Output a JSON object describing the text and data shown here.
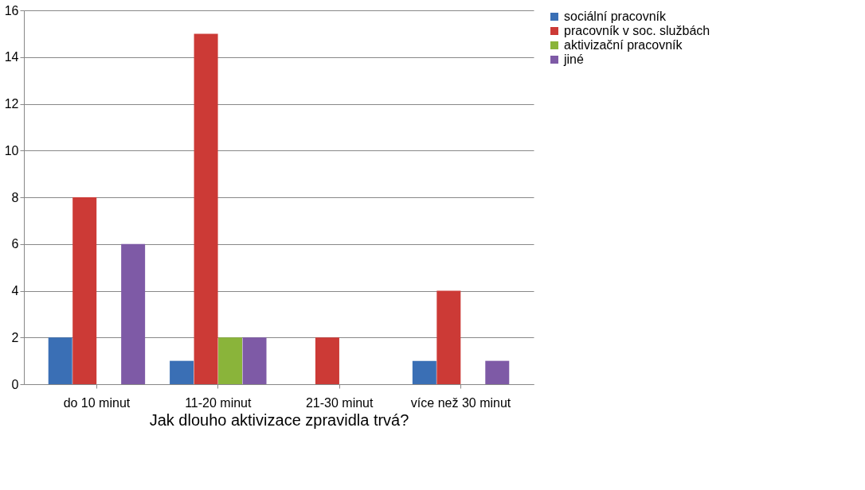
{
  "chart_data": {
    "type": "bar",
    "xlabel": "Jak dlouho aktivizace zpravidla trvá?",
    "categories": [
      "do 10 minut",
      "11-20 minut",
      "21-30 minut",
      "více než 30 minut"
    ],
    "series": [
      {
        "name": "sociální pracovník",
        "color": "#3a6fb5",
        "values": [
          2,
          1,
          0,
          1
        ]
      },
      {
        "name": "pracovník v soc. službách",
        "color": "#cc3a36",
        "values": [
          8,
          15,
          2,
          4
        ]
      },
      {
        "name": "aktivizační pracovník",
        "color": "#8ab43a",
        "values": [
          0,
          2,
          0,
          0
        ]
      },
      {
        "name": "jiné",
        "color": "#7e5aa6",
        "values": [
          6,
          2,
          0,
          1
        ]
      }
    ],
    "ylim": [
      0,
      16
    ],
    "yticks": [
      0,
      2,
      4,
      6,
      8,
      10,
      12,
      14,
      16
    ],
    "grid": "y",
    "legend": "right"
  }
}
